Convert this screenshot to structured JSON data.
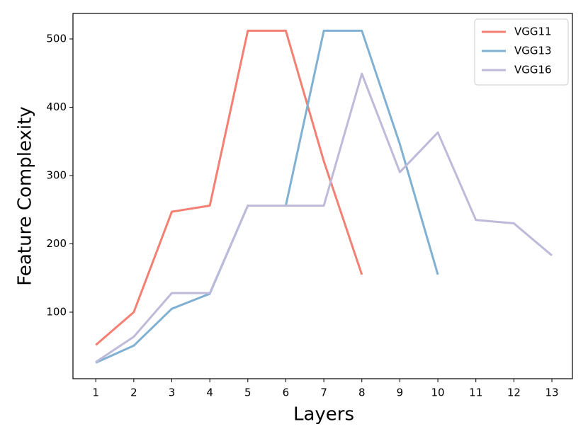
{
  "chart_data": {
    "type": "line",
    "x_label": "Layers",
    "y_label": "Feature Complexity",
    "x": [
      1,
      2,
      3,
      4,
      5,
      6,
      7,
      8,
      9,
      10,
      11,
      12,
      13
    ],
    "series": [
      {
        "name": "VGG11",
        "color": "#f47f72",
        "values": [
          52,
          100,
          247,
          256,
          512,
          512,
          321,
          155,
          null,
          null,
          null,
          null,
          null
        ]
      },
      {
        "name": "VGG13",
        "color": "#80b1d3",
        "values": [
          26,
          51,
          105,
          127,
          256,
          256,
          512,
          512,
          346,
          155,
          null,
          null,
          null
        ]
      },
      {
        "name": "VGG16",
        "color": "#bebada",
        "values": [
          27,
          64,
          128,
          128,
          256,
          256,
          256,
          449,
          305,
          363,
          235,
          230,
          183
        ]
      }
    ],
    "xlim": [
      0.4,
      13.54
    ],
    "ylim": [
      2.6,
      537.3
    ],
    "xticks": [
      1,
      2,
      3,
      4,
      5,
      6,
      7,
      8,
      9,
      10,
      11,
      12,
      13
    ],
    "yticks": [
      100,
      200,
      300,
      400,
      500
    ],
    "legend": "upper right",
    "grid": false
  }
}
